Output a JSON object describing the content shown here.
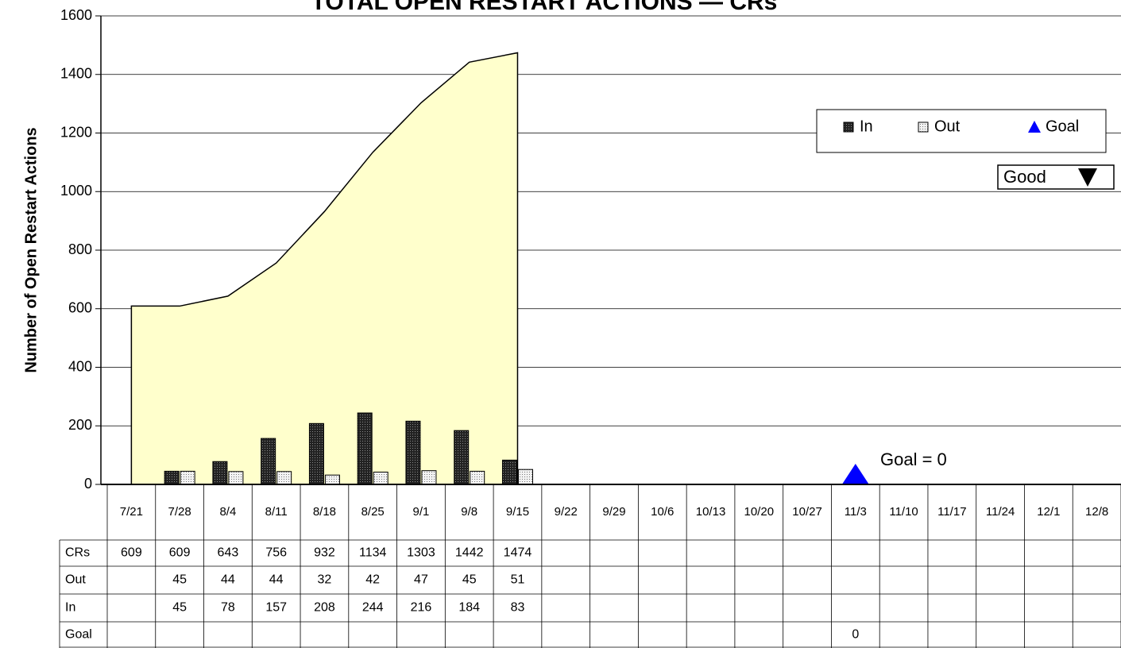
{
  "chart_data": {
    "type": "combo",
    "title": "TOTAL OPEN RESTART ACTIONS — CRs",
    "y_label": "Number of Open Restart Actions",
    "categories": [
      "7/21",
      "7/28",
      "8/4",
      "8/11",
      "8/18",
      "8/25",
      "9/1",
      "9/8",
      "9/15",
      "9/22",
      "9/29",
      "10/6",
      "10/13",
      "10/20",
      "10/27",
      "11/3",
      "11/10",
      "11/17",
      "11/24",
      "12/1",
      "12/8"
    ],
    "series": [
      {
        "name": "CRs",
        "type": "area",
        "color": "#ffffcc",
        "values": [
          609,
          609,
          643,
          756,
          932,
          1134,
          1303,
          1442,
          1474,
          null,
          null,
          null,
          null,
          null,
          null,
          null,
          null,
          null,
          null,
          null,
          null
        ]
      },
      {
        "name": "Out",
        "type": "bar",
        "color": "#dddddd",
        "values": [
          null,
          45,
          44,
          44,
          32,
          42,
          47,
          45,
          51,
          null,
          null,
          null,
          null,
          null,
          null,
          null,
          null,
          null,
          null,
          null,
          null
        ]
      },
      {
        "name": "In",
        "type": "bar",
        "color": "#333333",
        "values": [
          null,
          45,
          78,
          157,
          208,
          244,
          216,
          184,
          83,
          null,
          null,
          null,
          null,
          null,
          null,
          null,
          null,
          null,
          null,
          null,
          null
        ]
      },
      {
        "name": "Goal",
        "type": "marker",
        "color": "#0000ff",
        "values": [
          null,
          null,
          null,
          null,
          null,
          null,
          null,
          null,
          null,
          null,
          null,
          null,
          null,
          null,
          null,
          0,
          null,
          null,
          null,
          null,
          null
        ]
      }
    ],
    "ylim": [
      0,
      1600
    ],
    "yticks": [
      0,
      200,
      400,
      600,
      800,
      1000,
      1200,
      1400,
      1600
    ],
    "grid": true,
    "legend": "upper right",
    "annotations": [
      "Goal = 0",
      "Good"
    ]
  }
}
